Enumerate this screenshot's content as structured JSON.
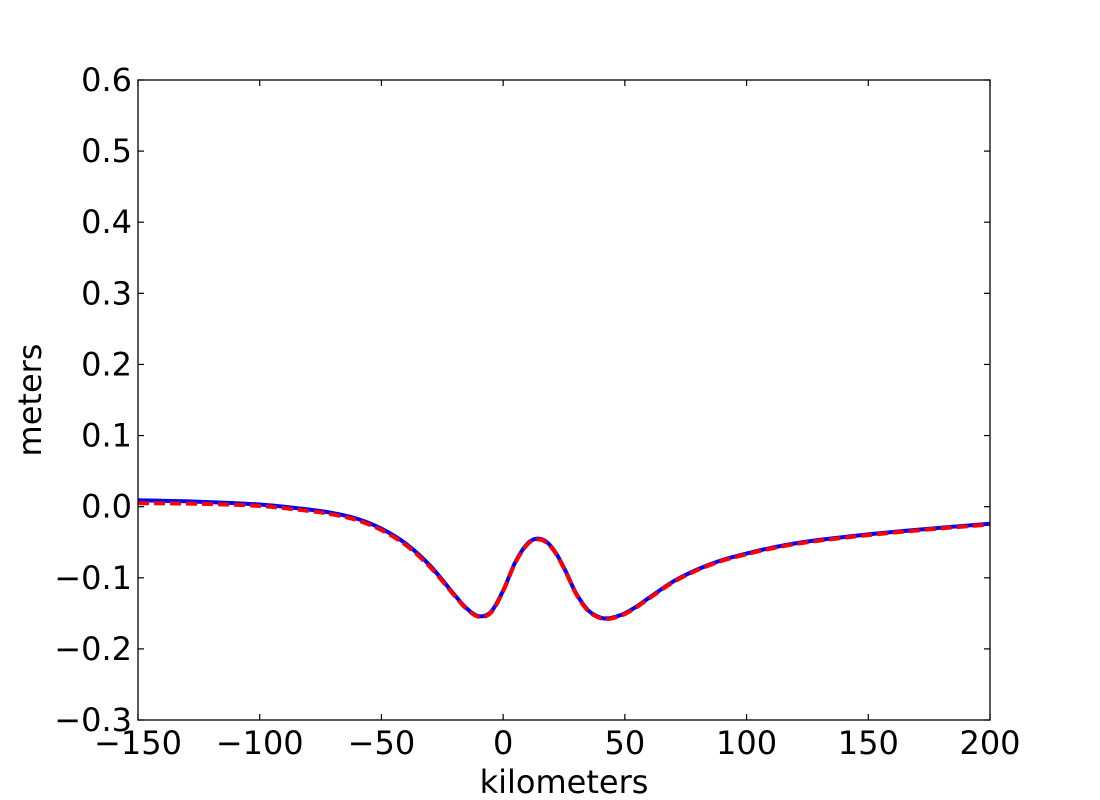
{
  "chart_data": {
    "type": "line",
    "title": "",
    "xlabel": "kilometers",
    "ylabel": "meters",
    "xlim": [
      -150,
      200
    ],
    "ylim": [
      -0.3,
      0.6
    ],
    "xticks": [
      -150,
      -100,
      -50,
      0,
      50,
      100,
      150,
      200
    ],
    "xtick_labels": [
      "−150",
      "−100",
      "−50",
      "0",
      "50",
      "100",
      "150",
      "200"
    ],
    "yticks": [
      -0.3,
      -0.2,
      -0.1,
      0.0,
      0.1,
      0.2,
      0.3,
      0.4,
      0.5,
      0.6
    ],
    "ytick_labels": [
      "−0.3",
      "−0.2",
      "−0.1",
      "0.0",
      "0.1",
      "0.2",
      "0.3",
      "0.4",
      "0.5",
      "0.6"
    ],
    "grid": false,
    "legend": "none",
    "x": [
      -150,
      -125,
      -100,
      -80,
      -70,
      -60,
      -50,
      -40,
      -30,
      -20,
      -15,
      -10,
      -5,
      0,
      5,
      10,
      14,
      18,
      22,
      26,
      30,
      35,
      40,
      43,
      46,
      50,
      55,
      60,
      70,
      80,
      90,
      100,
      110,
      125,
      150,
      175,
      200
    ],
    "series": [
      {
        "style": "solid",
        "color": "#0000ff",
        "values": [
          0.009,
          0.007,
          0.003,
          -0.004,
          -0.009,
          -0.017,
          -0.031,
          -0.052,
          -0.083,
          -0.124,
          -0.143,
          -0.154,
          -0.148,
          -0.118,
          -0.078,
          -0.052,
          -0.045,
          -0.05,
          -0.067,
          -0.093,
          -0.122,
          -0.146,
          -0.156,
          -0.157,
          -0.155,
          -0.15,
          -0.14,
          -0.128,
          -0.105,
          -0.088,
          -0.075,
          -0.066,
          -0.058,
          -0.049,
          -0.039,
          -0.031,
          -0.024
        ]
      },
      {
        "style": "dashed",
        "color": "#ff0000",
        "values": [
          0.005,
          0.004,
          0.001,
          -0.006,
          -0.011,
          -0.019,
          -0.033,
          -0.054,
          -0.085,
          -0.125,
          -0.144,
          -0.155,
          -0.149,
          -0.119,
          -0.079,
          -0.053,
          -0.046,
          -0.051,
          -0.068,
          -0.094,
          -0.123,
          -0.147,
          -0.157,
          -0.158,
          -0.156,
          -0.151,
          -0.141,
          -0.129,
          -0.106,
          -0.089,
          -0.076,
          -0.067,
          -0.059,
          -0.05,
          -0.04,
          -0.032,
          -0.025
        ]
      }
    ]
  }
}
